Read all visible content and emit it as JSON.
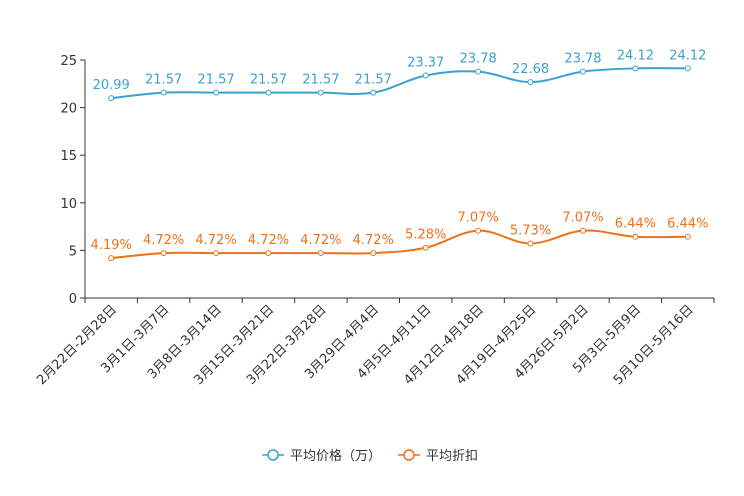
{
  "chart_data": {
    "type": "line",
    "categories": [
      "2月22日-2月28日",
      "3月1日-3月7日",
      "3月8日-3月14日",
      "3月15日-3月21日",
      "3月22日-3月28日",
      "3月29日-4月4日",
      "4月5日-4月11日",
      "4月12日-4月18日",
      "4月19日-4月25日",
      "4月26日-5月2日",
      "5月3日-5月9日",
      "5月10日-5月16日"
    ],
    "ylim": [
      0,
      25
    ],
    "yticks": [
      0,
      5,
      10,
      15,
      20,
      25
    ],
    "series": [
      {
        "name": "平均价格（万）",
        "color": "#3ba1cf",
        "values": [
          20.99,
          21.57,
          21.57,
          21.57,
          21.57,
          21.57,
          23.37,
          23.78,
          22.68,
          23.78,
          24.12,
          24.12
        ],
        "labels": [
          "20.99",
          "21.57",
          "21.57",
          "21.57",
          "21.57",
          "21.57",
          "23.37",
          "23.78",
          "22.68",
          "23.78",
          "24.12",
          "24.12"
        ]
      },
      {
        "name": "平均折扣",
        "color": "#f07017",
        "values": [
          4.19,
          4.72,
          4.72,
          4.72,
          4.72,
          4.72,
          5.28,
          7.07,
          5.73,
          7.07,
          6.44,
          6.44
        ],
        "labels": [
          "4.19%",
          "4.72%",
          "4.72%",
          "4.72%",
          "4.72%",
          "4.72%",
          "5.28%",
          "7.07%",
          "5.73%",
          "7.07%",
          "6.44%",
          "6.44%"
        ]
      }
    ],
    "legend_position": "bottom-center"
  }
}
